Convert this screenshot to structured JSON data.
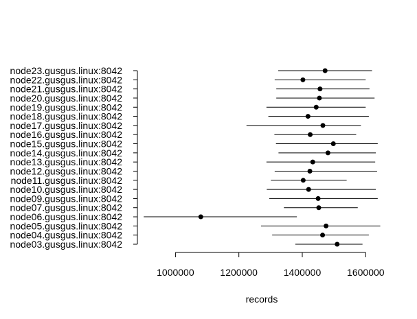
{
  "chart_data": {
    "type": "dot-range",
    "xlabel": "records",
    "xticks": [
      1000000,
      1200000,
      1400000,
      1600000
    ],
    "xtick_labels": [
      "1000000",
      "1200000",
      "1400000",
      "1600000"
    ],
    "xlim": [
      880000,
      1660000
    ],
    "series": [
      {
        "label": "node23.gusgus.linux:8042",
        "mean": 1472000,
        "low": 1324000,
        "high": 1620000
      },
      {
        "label": "node22.gusgus.linux:8042",
        "mean": 1402000,
        "low": 1313000,
        "high": 1600000
      },
      {
        "label": "node21.gusgus.linux:8042",
        "mean": 1456000,
        "low": 1318000,
        "high": 1612000
      },
      {
        "label": "node20.gusgus.linux:8042",
        "mean": 1454000,
        "low": 1318000,
        "high": 1628000
      },
      {
        "label": "node19.gusgus.linux:8042",
        "mean": 1444000,
        "low": 1287000,
        "high": 1600000
      },
      {
        "label": "node18.gusgus.linux:8042",
        "mean": 1418000,
        "low": 1293000,
        "high": 1610000
      },
      {
        "label": "node17.gusgus.linux:8042",
        "mean": 1465000,
        "low": 1224000,
        "high": 1585000
      },
      {
        "label": "node16.gusgus.linux:8042",
        "mean": 1425000,
        "low": 1312000,
        "high": 1570000
      },
      {
        "label": "node15.gusgus.linux:8042",
        "mean": 1498000,
        "low": 1317000,
        "high": 1638000
      },
      {
        "label": "node14.gusgus.linux:8042",
        "mean": 1481000,
        "low": 1325000,
        "high": 1632000
      },
      {
        "label": "node13.gusgus.linux:8042",
        "mean": 1433000,
        "low": 1287000,
        "high": 1630000
      },
      {
        "label": "node12.gusgus.linux:8042",
        "mean": 1424000,
        "low": 1313000,
        "high": 1636000
      },
      {
        "label": "node11.gusgus.linux:8042",
        "mean": 1403000,
        "low": 1301000,
        "high": 1540000
      },
      {
        "label": "node10.gusgus.linux:8042",
        "mean": 1420000,
        "low": 1288000,
        "high": 1632000
      },
      {
        "label": "node09.gusgus.linux:8042",
        "mean": 1450000,
        "low": 1296000,
        "high": 1638000
      },
      {
        "label": "node07.gusgus.linux:8042",
        "mean": 1452000,
        "low": 1342000,
        "high": 1575000
      },
      {
        "label": "node06.gusgus.linux:8042",
        "mean": 1080000,
        "low": 900000,
        "high": 1383000
      },
      {
        "label": "node05.gusgus.linux:8042",
        "mean": 1475000,
        "low": 1270000,
        "high": 1646000
      },
      {
        "label": "node04.gusgus.linux:8042",
        "mean": 1464000,
        "low": 1305000,
        "high": 1610000
      },
      {
        "label": "node03.gusgus.linux:8042",
        "mean": 1510000,
        "low": 1378000,
        "high": 1590000
      }
    ]
  }
}
